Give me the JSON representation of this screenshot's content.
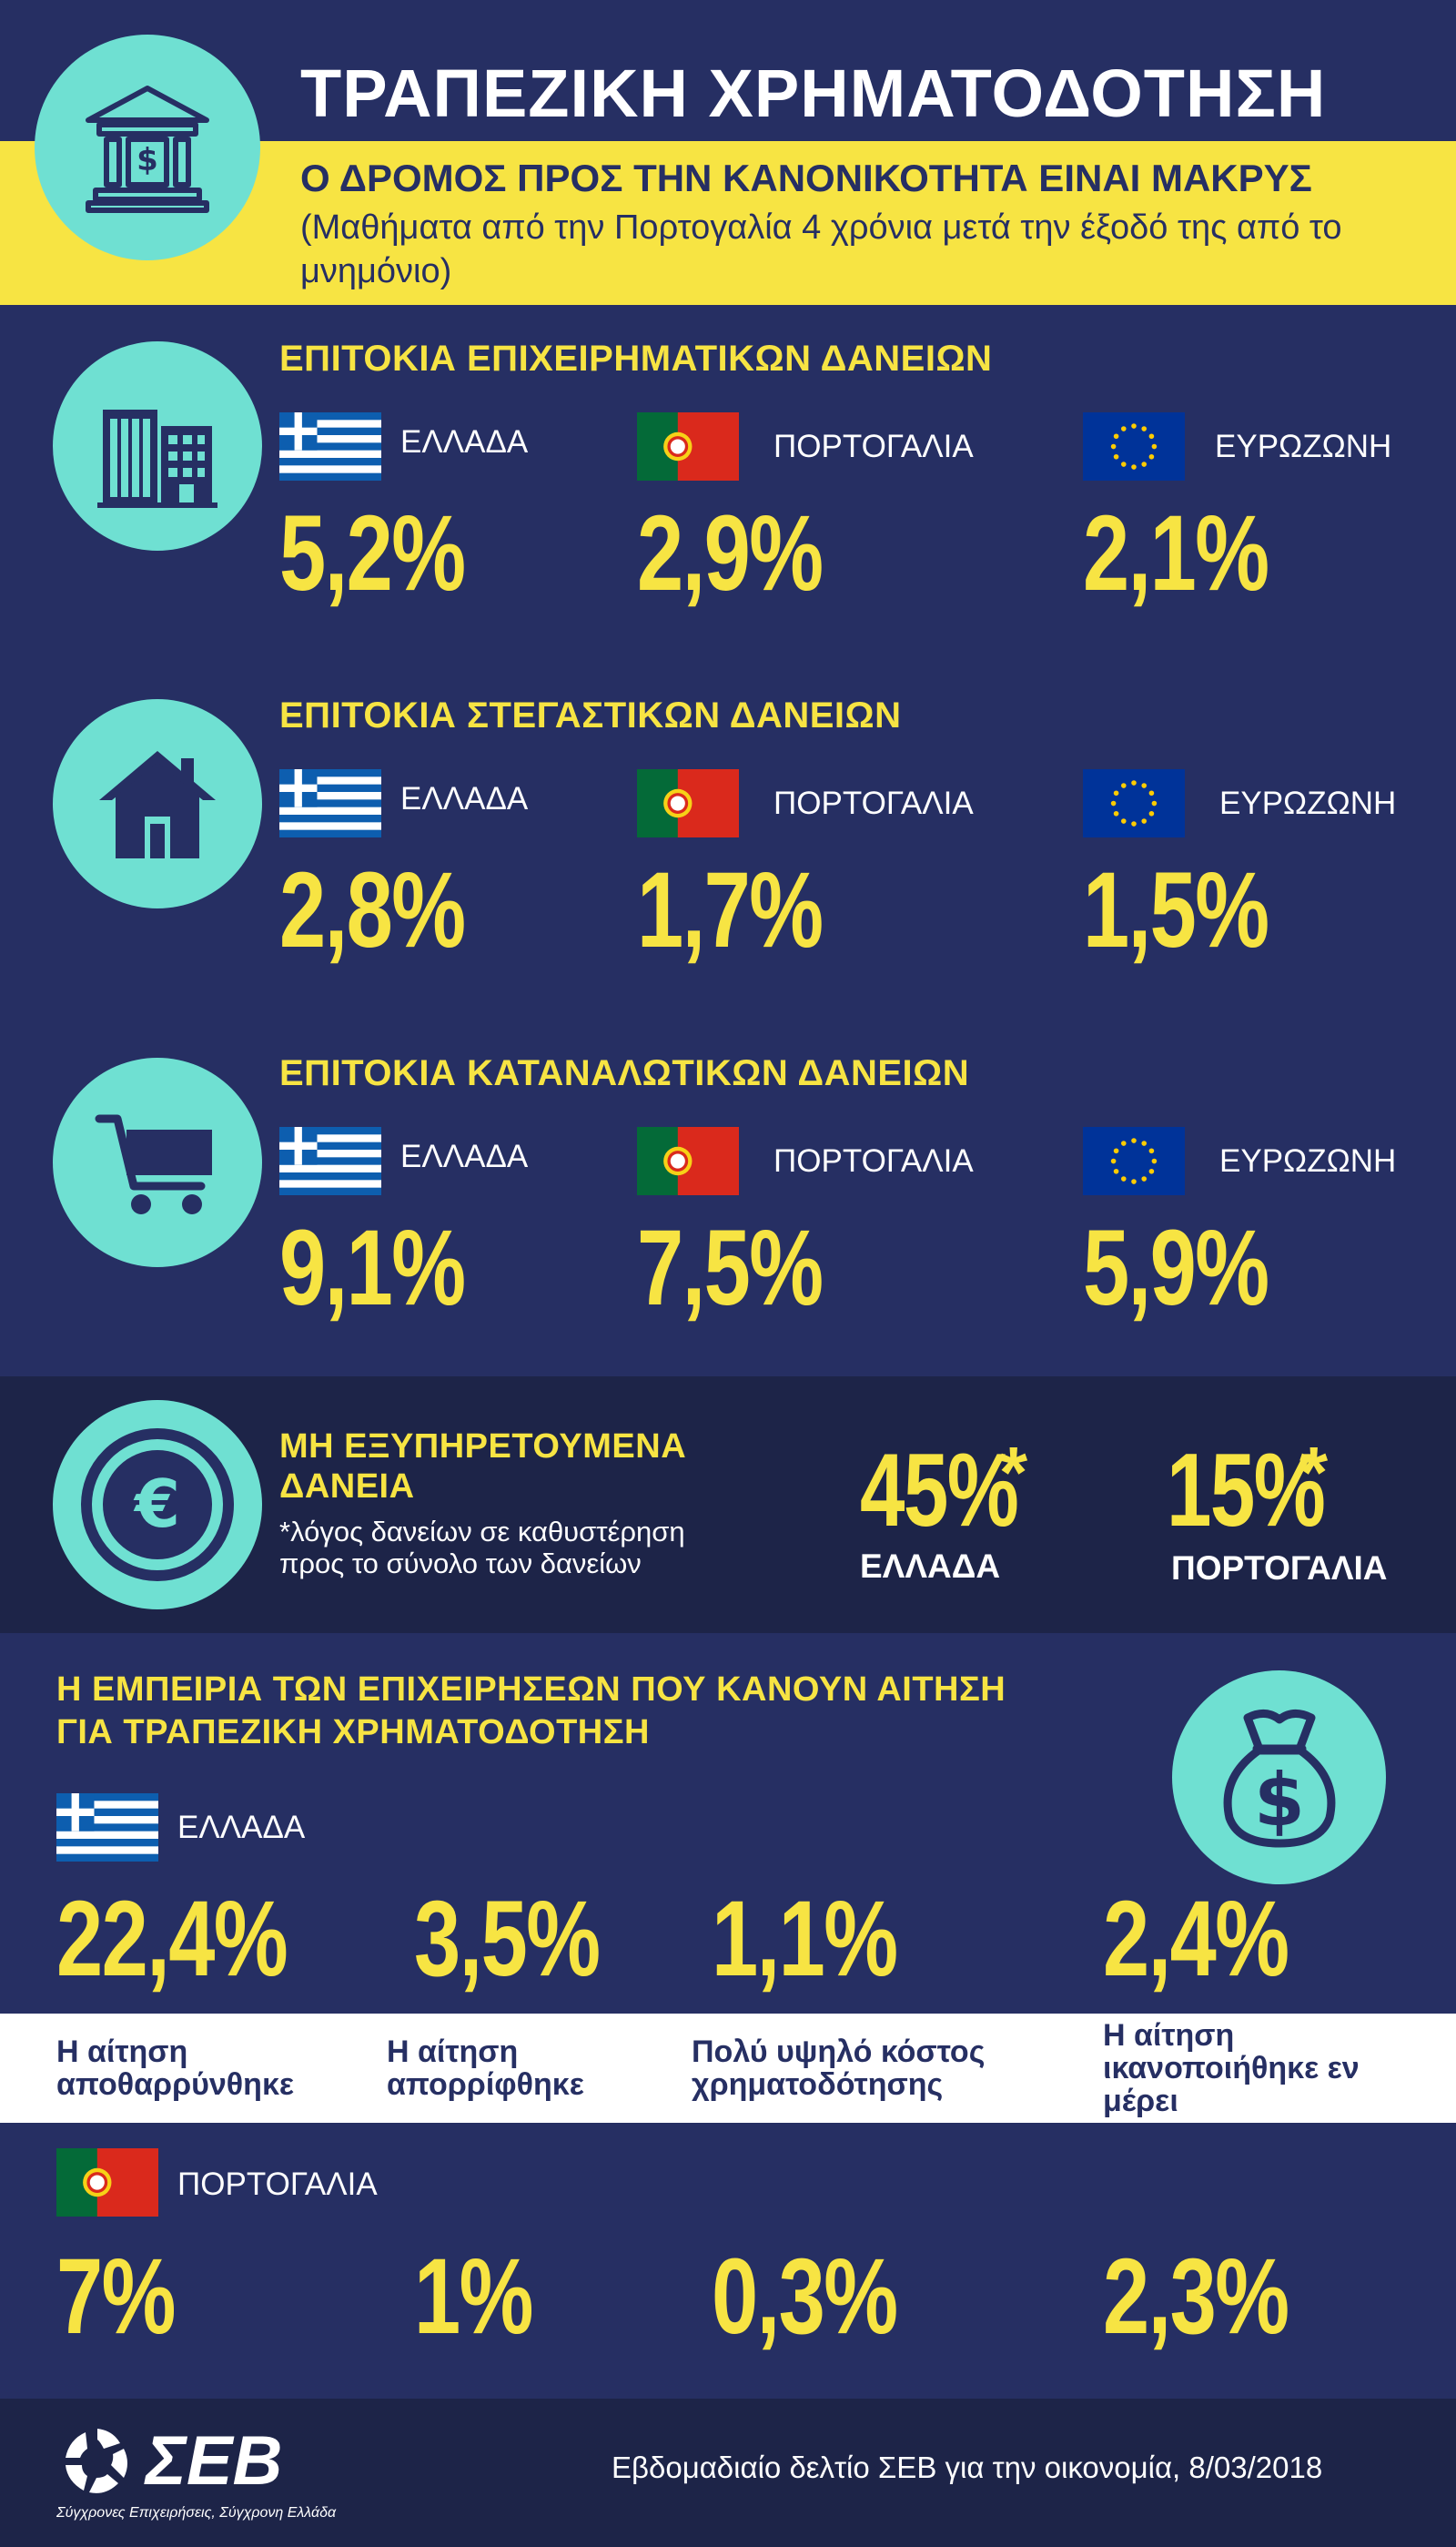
{
  "header": {
    "title": "ΤΡΑΠΕΖΙΚΗ ΧΡΗΜΑΤΟΔΟΤΗΣΗ",
    "subtitle": "Ο ΔΡΟΜΟΣ ΠΡΟΣ ΤΗΝ ΚΑΝΟΝΙΚΟΤΗΤΑ ΕΙΝΑΙ ΜΑΚΡΥΣ",
    "note": "(Μαθήματα από την Πορτογαλία 4 χρόνια μετά την έξοδό της από το μνημόνιο)",
    "icon": "bank-icon"
  },
  "business_loans": {
    "title": "ΕΠΙΤΟΚΙΑ ΕΠΙΧΕΙΡΗΜΑΤΙΚΩΝ ΔΑΝΕΙΩΝ",
    "icon": "buildings-icon",
    "greece": {
      "label": "ΕΛΛΑΔΑ",
      "value": "5,2%"
    },
    "portugal": {
      "label": "ΠΟΡΤΟΓΑΛΙΑ",
      "value": "2,9%"
    },
    "eurozone": {
      "label": "ΕΥΡΩΖΩΝΗ",
      "value": "2,1%"
    }
  },
  "mortgage_loans": {
    "title": "ΕΠΙΤΟΚΙΑ ΣΤΕΓΑΣΤΙΚΩΝ ΔΑΝΕΙΩΝ",
    "icon": "house-icon",
    "greece": {
      "label": "ΕΛΛΑΔΑ",
      "value": "2,8%"
    },
    "portugal": {
      "label": "ΠΟΡΤΟΓΑΛΙΑ",
      "value": "1,7%"
    },
    "eurozone": {
      "label": "ΕΥΡΩΖΩΝΗ",
      "value": "1,5%"
    }
  },
  "consumer_loans": {
    "title": "ΕΠΙΤΟΚΙΑ ΚΑΤΑΝΑΛΩΤΙΚΩΝ ΔΑΝΕΙΩΝ",
    "icon": "cart-icon",
    "greece": {
      "label": "ΕΛΛΑΔΑ",
      "value": "9,1%"
    },
    "portugal": {
      "label": "ΠΟΡΤΟΓΑΛΙΑ",
      "value": "7,5%"
    },
    "eurozone": {
      "label": "ΕΥΡΩΖΩΝΗ",
      "value": "5,9%"
    }
  },
  "npl": {
    "title_line1": "ΜΗ ΕΞΥΠΗΡΕΤΟΥΜΕΝΑ",
    "title_line2": "ΔΑΝΕΙΑ",
    "note_line1": "*λόγος δανείων σε καθυστέρηση",
    "note_line2": "προς το σύνολο των δανείων",
    "icon": "euro-coin-icon",
    "greece": {
      "value": "45%",
      "star": "*",
      "label": "ΕΛΛΑΔΑ"
    },
    "portugal": {
      "value": "15%",
      "star": "*",
      "label": "ΠΟΡΤΟΓΑΛΙΑ"
    }
  },
  "experience": {
    "title_line1": "Η ΕΜΠΕΙΡΙΑ ΤΩΝ ΕΠΙΧΕΙΡΗΣΕΩΝ ΠΟΥ ΚΑΝΟΥΝ ΑΙΤΗΣΗ",
    "title_line2": "ΓΙΑ ΤΡΑΠΕΖΙΚΗ ΧΡΗΜΑΤΟΔΟΤΗΣΗ",
    "icon": "money-bag-icon",
    "greece": {
      "label": "ΕΛΛΑΔΑ",
      "values": [
        "22,4%",
        "3,5%",
        "1,1%",
        "2,4%"
      ]
    },
    "categories": [
      {
        "line1": "Η αίτηση",
        "line2": "αποθαρρύνθηκε",
        "line3": ""
      },
      {
        "line1": "Η αίτηση",
        "line2": "απορρίφθηκε",
        "line3": ""
      },
      {
        "line1": "Πολύ υψηλό κόστος",
        "line2": "χρηματοδότησης",
        "line3": ""
      },
      {
        "line1": "Η αίτηση",
        "line2": "ικανοποιήθηκε εν",
        "line3": "μέρει"
      }
    ],
    "portugal": {
      "label": "ΠΟΡΤΟΓΑΛΙΑ",
      "values": [
        "7%",
        "1%",
        "0,3%",
        "2,3%"
      ]
    }
  },
  "footer": {
    "logo_text": "ΣΕΒ",
    "tagline": "Σύγχρονες Επιχειρήσεις, Σύγχρονη Ελλάδα",
    "source": "Εβδομαδιαίο δελτίο ΣΕΒ για την οικονομία, 8/03/2018"
  },
  "colors": {
    "navy": "#262f63",
    "dark_navy": "#1d2448",
    "yellow": "#f7e443",
    "teal": "#6fe0d2",
    "greek_blue": "#0d5eaf",
    "pt_green": "#046a38",
    "pt_red": "#da291c",
    "eu_blue": "#003399"
  }
}
